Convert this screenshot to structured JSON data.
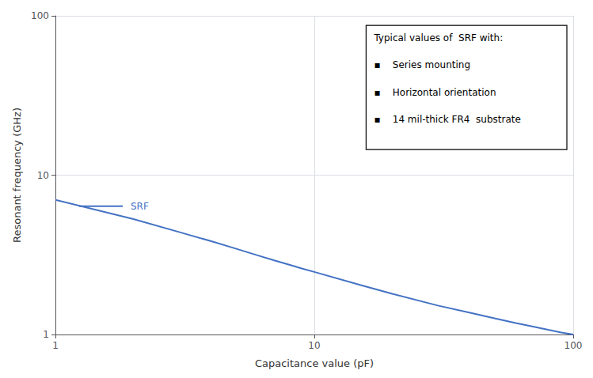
{
  "chart_data": {
    "type": "line",
    "xlabel": "Capacitance value (pF)",
    "ylabel": "Resonant frequency (GHz)",
    "x": [
      1,
      2,
      3,
      4,
      5,
      6,
      7,
      8,
      9,
      10,
      15,
      20,
      30,
      40,
      50,
      60,
      70,
      80,
      90,
      100
    ],
    "values": [
      7.0,
      5.3,
      4.4,
      3.85,
      3.45,
      3.15,
      2.92,
      2.74,
      2.59,
      2.47,
      2.05,
      1.8,
      1.52,
      1.37,
      1.26,
      1.18,
      1.12,
      1.07,
      1.03,
      1.0
    ],
    "color": "#4472C4",
    "xlim": [
      1,
      100
    ],
    "ylim": [
      1,
      100
    ],
    "xticks": [
      1,
      10,
      100
    ],
    "yticks": [
      1,
      10,
      100
    ],
    "log": true,
    "grid": true,
    "annotations": [
      "SRF",
      "Typical values of  SRF with:",
      "▪    Series mounting",
      "▪    Horizontal orientation",
      "▪    14 mil-thick FR4  substrate"
    ]
  }
}
